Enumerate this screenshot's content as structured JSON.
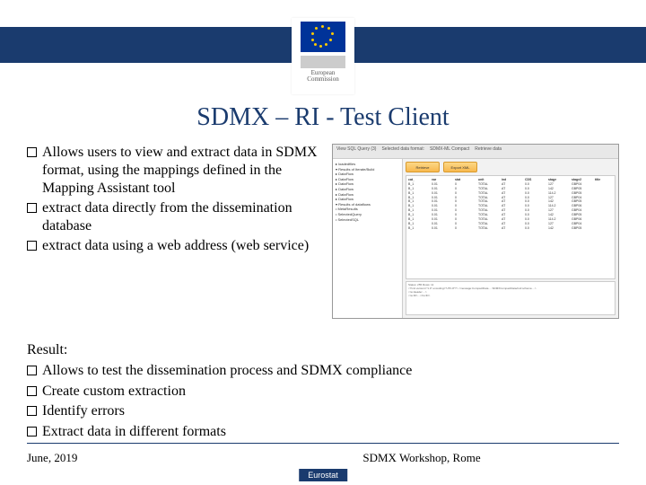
{
  "header": {
    "logo_line1": "European",
    "logo_line2": "Commission"
  },
  "title": "SDMX – RI - Test Client",
  "bullets_top": [
    "Allows users to view and extract data in SDMX format, using the mappings defined in the Mapping Assistant tool",
    "extract data directly from the dissemination database",
    "extract data using a web address (web service)"
  ],
  "result_label": "Result:",
  "bullets_result": [
    "Allows to test the dissemination process and SDMX compliance",
    "Create custom extraction",
    "Identify errors",
    "Extract data in different formats"
  ],
  "footer": {
    "date": "June, 2019",
    "center": "SDMX Workshop, Rome",
    "badge": "Eurostat"
  },
  "screenshot": {
    "toolbar_items": [
      "View SQL Query (3)",
      "Selected data format:",
      "SDMX-ML Compact",
      "Retrieve data"
    ],
    "tree_items": [
      "▸ loadedfiles",
      "  ▾ Results of Iterate/Build",
      "    ▸ DataFlow",
      "    ▸ DataFlow",
      "    ▸ DataFlow",
      "    ▸ DataFlow",
      "    ▸ DataFlow",
      "    ▸ DataFlow",
      "    ▾ Results of dataflows",
      "      • MetaResults",
      "      • SelectedQuery",
      "      • SelectedSQL"
    ],
    "buttons": [
      "Retrieve",
      "Export XML"
    ],
    "table_header": [
      "cat_",
      "var",
      "stat",
      "unit",
      "ind",
      "CDS",
      "stage",
      "stage2",
      "title"
    ],
    "table_rows": [
      [
        "B_1",
        "0.01",
        "0",
        "TOTAL",
        "AT",
        "0.0",
        "127",
        "GBP04"
      ],
      [
        "B_1",
        "0.01",
        "0",
        "TOTAL",
        "AT",
        "0.0",
        "142",
        "GBP05"
      ],
      [
        "B_1",
        "0.01",
        "0",
        "TOTAL",
        "AT",
        "0.0",
        "114.2",
        "GBP05"
      ],
      [
        "B_1",
        "0.01",
        "0",
        "TOTAL",
        "AT",
        "0.0",
        "127",
        "GBP04"
      ],
      [
        "B_1",
        "0.01",
        "0",
        "TOTAL",
        "AT",
        "0.0",
        "142",
        "GBP05"
      ],
      [
        "B_1",
        "0.01",
        "0",
        "TOTAL",
        "AT",
        "0.0",
        "114.2",
        "GBP06"
      ],
      [
        "B_1",
        "0.01",
        "0",
        "TOTAL",
        "AT",
        "0.0",
        "127",
        "GBP04"
      ],
      [
        "B_1",
        "0.01",
        "0",
        "TOTAL",
        "AT",
        "0.0",
        "142",
        "GBP05"
      ],
      [
        "B_1",
        "0.01",
        "0",
        "TOTAL",
        "AT",
        "0.0",
        "114.2",
        "GBP06"
      ],
      [
        "B_1",
        "0.01",
        "0",
        "TOTAL",
        "AT",
        "0.0",
        "127",
        "GBP04"
      ],
      [
        "B_1",
        "0.01",
        "0",
        "TOTAL",
        "AT",
        "0.0",
        "142",
        "GBP05"
      ]
    ],
    "bottom_lines": [
      "Status: 255 Rows: 11",
      "&lt;?xml version=\"1.0\" encoding=\"UTF-8\"?&gt; &lt;message:CompactData ... SDMXCompactData/ns2:schema ...&gt;",
      "&lt;ns:Header ...&gt;",
      "&lt;ns:ID&gt;...&lt;/ns:ID&gt;"
    ]
  },
  "colors": {
    "brand_blue": "#1a3b6e",
    "eu_blue": "#003399",
    "eu_gold": "#ffcc00"
  }
}
